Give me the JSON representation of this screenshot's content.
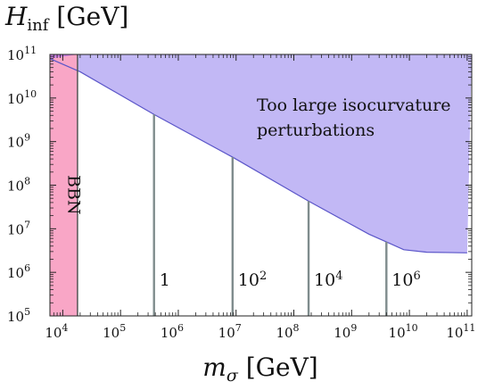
{
  "chart_data": {
    "type": "area",
    "xlabel": {
      "main": "m",
      "sub": "σ",
      "unit": "[GeV]"
    },
    "ylabel": {
      "main": "H",
      "sub": "inf",
      "unit": "[GeV]"
    },
    "xscale": "log",
    "yscale": "log",
    "xlim": [
      6000,
      120000000000.0
    ],
    "ylim": [
      100000.0,
      100000000000.0
    ],
    "grid": false,
    "x_ticks": [
      {
        "label": "10",
        "exp": "4",
        "value": 10000.0
      },
      {
        "label": "10",
        "exp": "5",
        "value": 100000.0
      },
      {
        "label": "10",
        "exp": "6",
        "value": 1000000.0
      },
      {
        "label": "10",
        "exp": "7",
        "value": 10000000.0
      },
      {
        "label": "10",
        "exp": "8",
        "value": 100000000.0
      },
      {
        "label": "10",
        "exp": "9",
        "value": 1000000000.0
      },
      {
        "label": "10",
        "exp": "10",
        "value": 10000000000.0
      },
      {
        "label": "10",
        "exp": "11",
        "value": 100000000000.0
      }
    ],
    "y_ticks": [
      {
        "label": "10",
        "exp": "5",
        "value": 100000.0
      },
      {
        "label": "10",
        "exp": "6",
        "value": 1000000.0
      },
      {
        "label": "10",
        "exp": "7",
        "value": 10000000.0
      },
      {
        "label": "10",
        "exp": "8",
        "value": 100000000.0
      },
      {
        "label": "10",
        "exp": "9",
        "value": 1000000000.0
      },
      {
        "label": "10",
        "exp": "10",
        "value": 10000000000.0
      },
      {
        "label": "10",
        "exp": "11",
        "value": 100000000000.0
      }
    ],
    "regions": [
      {
        "name": "Too large isocurvature perturbations",
        "color": "#c2b8f5",
        "edge_color": "#5b56c9",
        "boundary": [
          {
            "x": 6000,
            "y": 80000000000.0
          },
          {
            "x": 20000.0,
            "y": 40000000000.0
          },
          {
            "x": 380000.0,
            "y": 4200000000.0
          },
          {
            "x": 8700000.0,
            "y": 440000000.0
          },
          {
            "x": 180000000.0,
            "y": 43000000.0
          },
          {
            "x": 2000000000.0,
            "y": 7500000.0
          },
          {
            "x": 4000000000.0,
            "y": 5000000.0
          },
          {
            "x": 8000000000.0,
            "y": 3300000.0
          },
          {
            "x": 20000000000.0,
            "y": 2900000.0
          },
          {
            "x": 100000000000.0,
            "y": 2800000.0
          }
        ]
      },
      {
        "name": "BBN",
        "color": "#f9a6c6",
        "edge_color": "#555555",
        "x_range": [
          6000,
          18000.0
        ]
      }
    ],
    "overlap_color": "#c77de0",
    "lines": [
      {
        "label": "1",
        "exp": "",
        "x": 380000.0
      },
      {
        "label": "10",
        "exp": "2",
        "x": 8700000.0
      },
      {
        "label": "10",
        "exp": "4",
        "x": 180000000.0
      },
      {
        "label": "10",
        "exp": "6",
        "x": 4000000000.0
      }
    ],
    "line_color": "#7f8c8d",
    "annotations": [
      {
        "text": "Too large isocurvature"
      },
      {
        "text": "perturbations"
      },
      {
        "text": "BBN"
      }
    ]
  }
}
